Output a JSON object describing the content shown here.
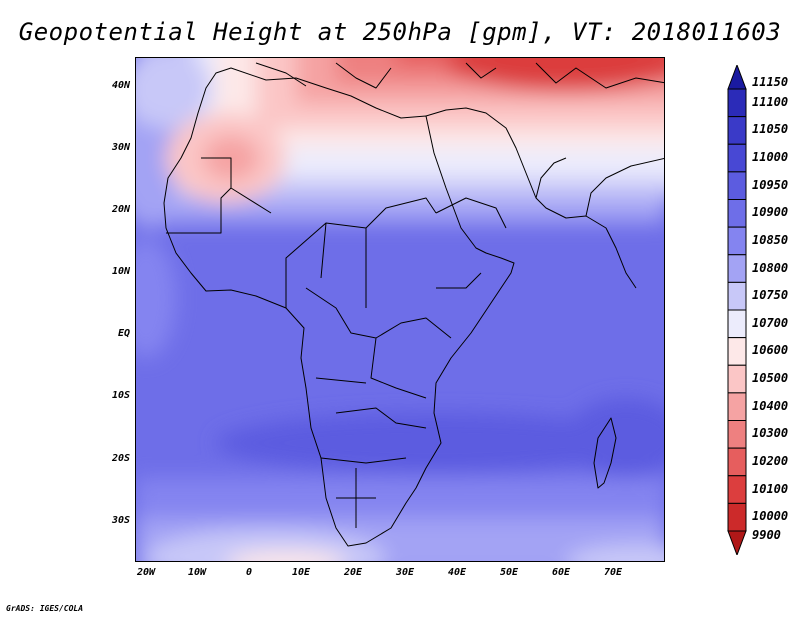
{
  "title": "Geopotential Height at 250hPa [gpm], VT: 2018011603",
  "credit": "GrADS: IGES/COLA",
  "map": {
    "lat_labels": [
      "40N",
      "30N",
      "20N",
      "10N",
      "EQ",
      "10S",
      "20S",
      "30S"
    ],
    "lat_values": [
      40,
      30,
      20,
      10,
      0,
      -10,
      -20,
      -30
    ],
    "lon_labels": [
      "20W",
      "10W",
      "0",
      "10E",
      "20E",
      "30E",
      "40E",
      "50E",
      "60E",
      "70E"
    ],
    "lon_values": [
      -20,
      -10,
      0,
      10,
      20,
      30,
      40,
      50,
      60,
      70
    ],
    "lon_range": [
      -22,
      80
    ],
    "lat_range": [
      -37,
      45
    ]
  },
  "colorbar": {
    "levels": [
      "11150",
      "11100",
      "11050",
      "11000",
      "10950",
      "10900",
      "10850",
      "10800",
      "10750",
      "10700",
      "10600",
      "10500",
      "10400",
      "10300",
      "10200",
      "10100",
      "10000",
      "9900"
    ],
    "colors": [
      "#1a1aa0",
      "#2b2bb8",
      "#3a3ac8",
      "#4848d4",
      "#5c5ce0",
      "#6e6ee8",
      "#8484f0",
      "#a3a3f4",
      "#c8c8f8",
      "#ececfc",
      "#fde8e8",
      "#fbc6c6",
      "#f5a3a3",
      "#ee8080",
      "#e65e5e",
      "#dc3e3e",
      "#cc2a2a",
      "#b01818"
    ]
  }
}
